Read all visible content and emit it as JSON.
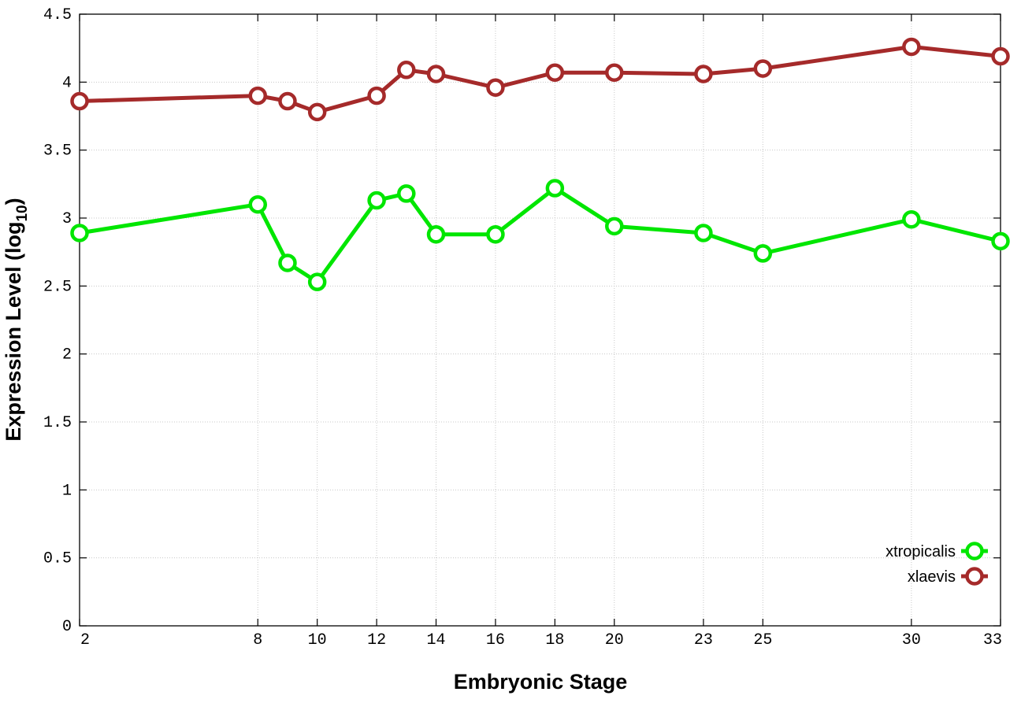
{
  "chart_data": {
    "type": "line",
    "xlabel": "Embryonic Stage",
    "ylabel": "Expression Level (log",
    "ylabel_subscript": "10",
    "ylabel_close": ")",
    "xlim": [
      2,
      33
    ],
    "ylim": [
      0,
      4.5
    ],
    "x_ticks": [
      2,
      8,
      10,
      12,
      14,
      16,
      18,
      20,
      23,
      25,
      30,
      33
    ],
    "y_ticks": [
      0,
      0.5,
      1,
      1.5,
      2,
      2.5,
      3,
      3.5,
      4,
      4.5
    ],
    "y_tick_labels": [
      "0",
      "0.5",
      "1",
      "1.5",
      "2",
      "2.5",
      "3",
      "3.5",
      "4",
      "4.5"
    ],
    "grid": true,
    "legend_position": "bottom-right",
    "x": [
      2,
      8,
      9,
      10,
      12,
      13,
      14,
      16,
      18,
      20,
      23,
      25,
      30,
      33
    ],
    "series": [
      {
        "name": "xtropicalis",
        "color": "#00e600",
        "values": [
          2.89,
          3.1,
          2.67,
          2.53,
          3.13,
          3.18,
          2.88,
          2.88,
          3.22,
          2.94,
          2.89,
          2.74,
          2.99,
          2.83
        ]
      },
      {
        "name": "xlaevis",
        "color": "#a52a2a",
        "values": [
          3.86,
          3.9,
          3.86,
          3.78,
          3.9,
          4.09,
          4.06,
          3.96,
          4.07,
          4.07,
          4.06,
          4.1,
          4.26,
          4.19
        ]
      }
    ]
  }
}
